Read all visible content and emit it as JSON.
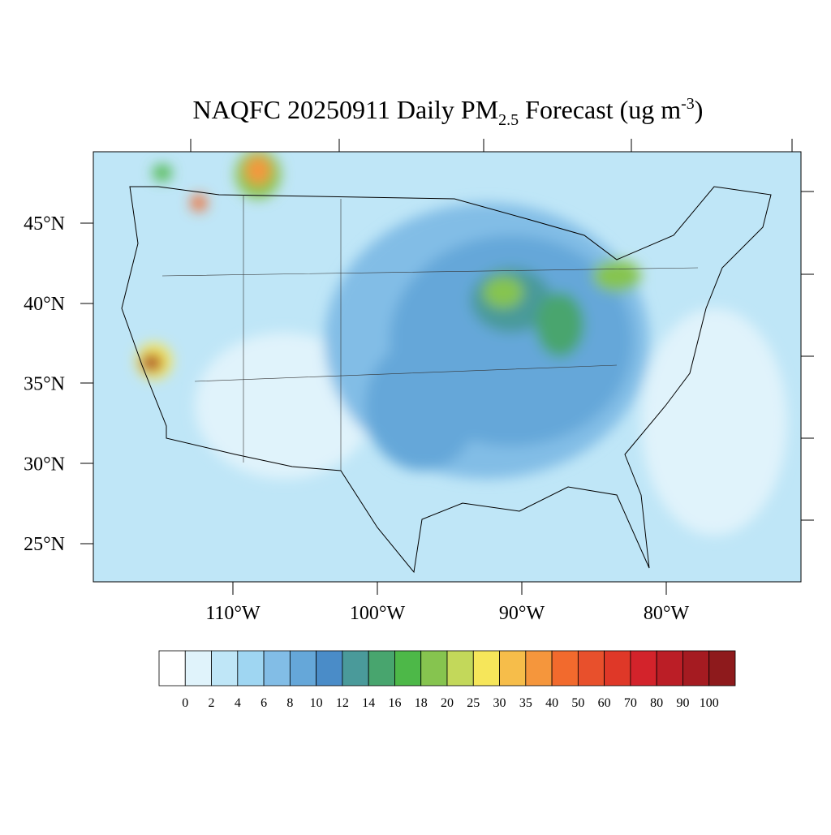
{
  "title": {
    "main": "NAQFC 20250911 Daily PM",
    "sub": "2.5",
    "after": " Forecast (ug m",
    "sup": "-3",
    "end": ")"
  },
  "map": {
    "lat_labels": [
      "45°N",
      "40°N",
      "35°N",
      "30°N",
      "25°N"
    ],
    "lon_labels": [
      "110°W",
      "100°W",
      "90°W",
      "80°W"
    ]
  },
  "colorbar": {
    "levels": [
      0,
      2,
      4,
      6,
      8,
      10,
      12,
      14,
      16,
      18,
      20,
      25,
      30,
      35,
      40,
      50,
      60,
      70,
      80,
      90,
      100
    ],
    "colors": [
      "#ffffff",
      "#e0f3fb",
      "#bfe6f7",
      "#9fd6f2",
      "#82bde6",
      "#65a7d9",
      "#4a8cc8",
      "#4a9a9a",
      "#48a56e",
      "#4db848",
      "#86c44f",
      "#c3d85a",
      "#f6e65a",
      "#f6bd4a",
      "#f5963c",
      "#f26a2d",
      "#e8502c",
      "#df3828",
      "#d3232b",
      "#bb1e26",
      "#a51b21",
      "#8e1a1c"
    ]
  }
}
